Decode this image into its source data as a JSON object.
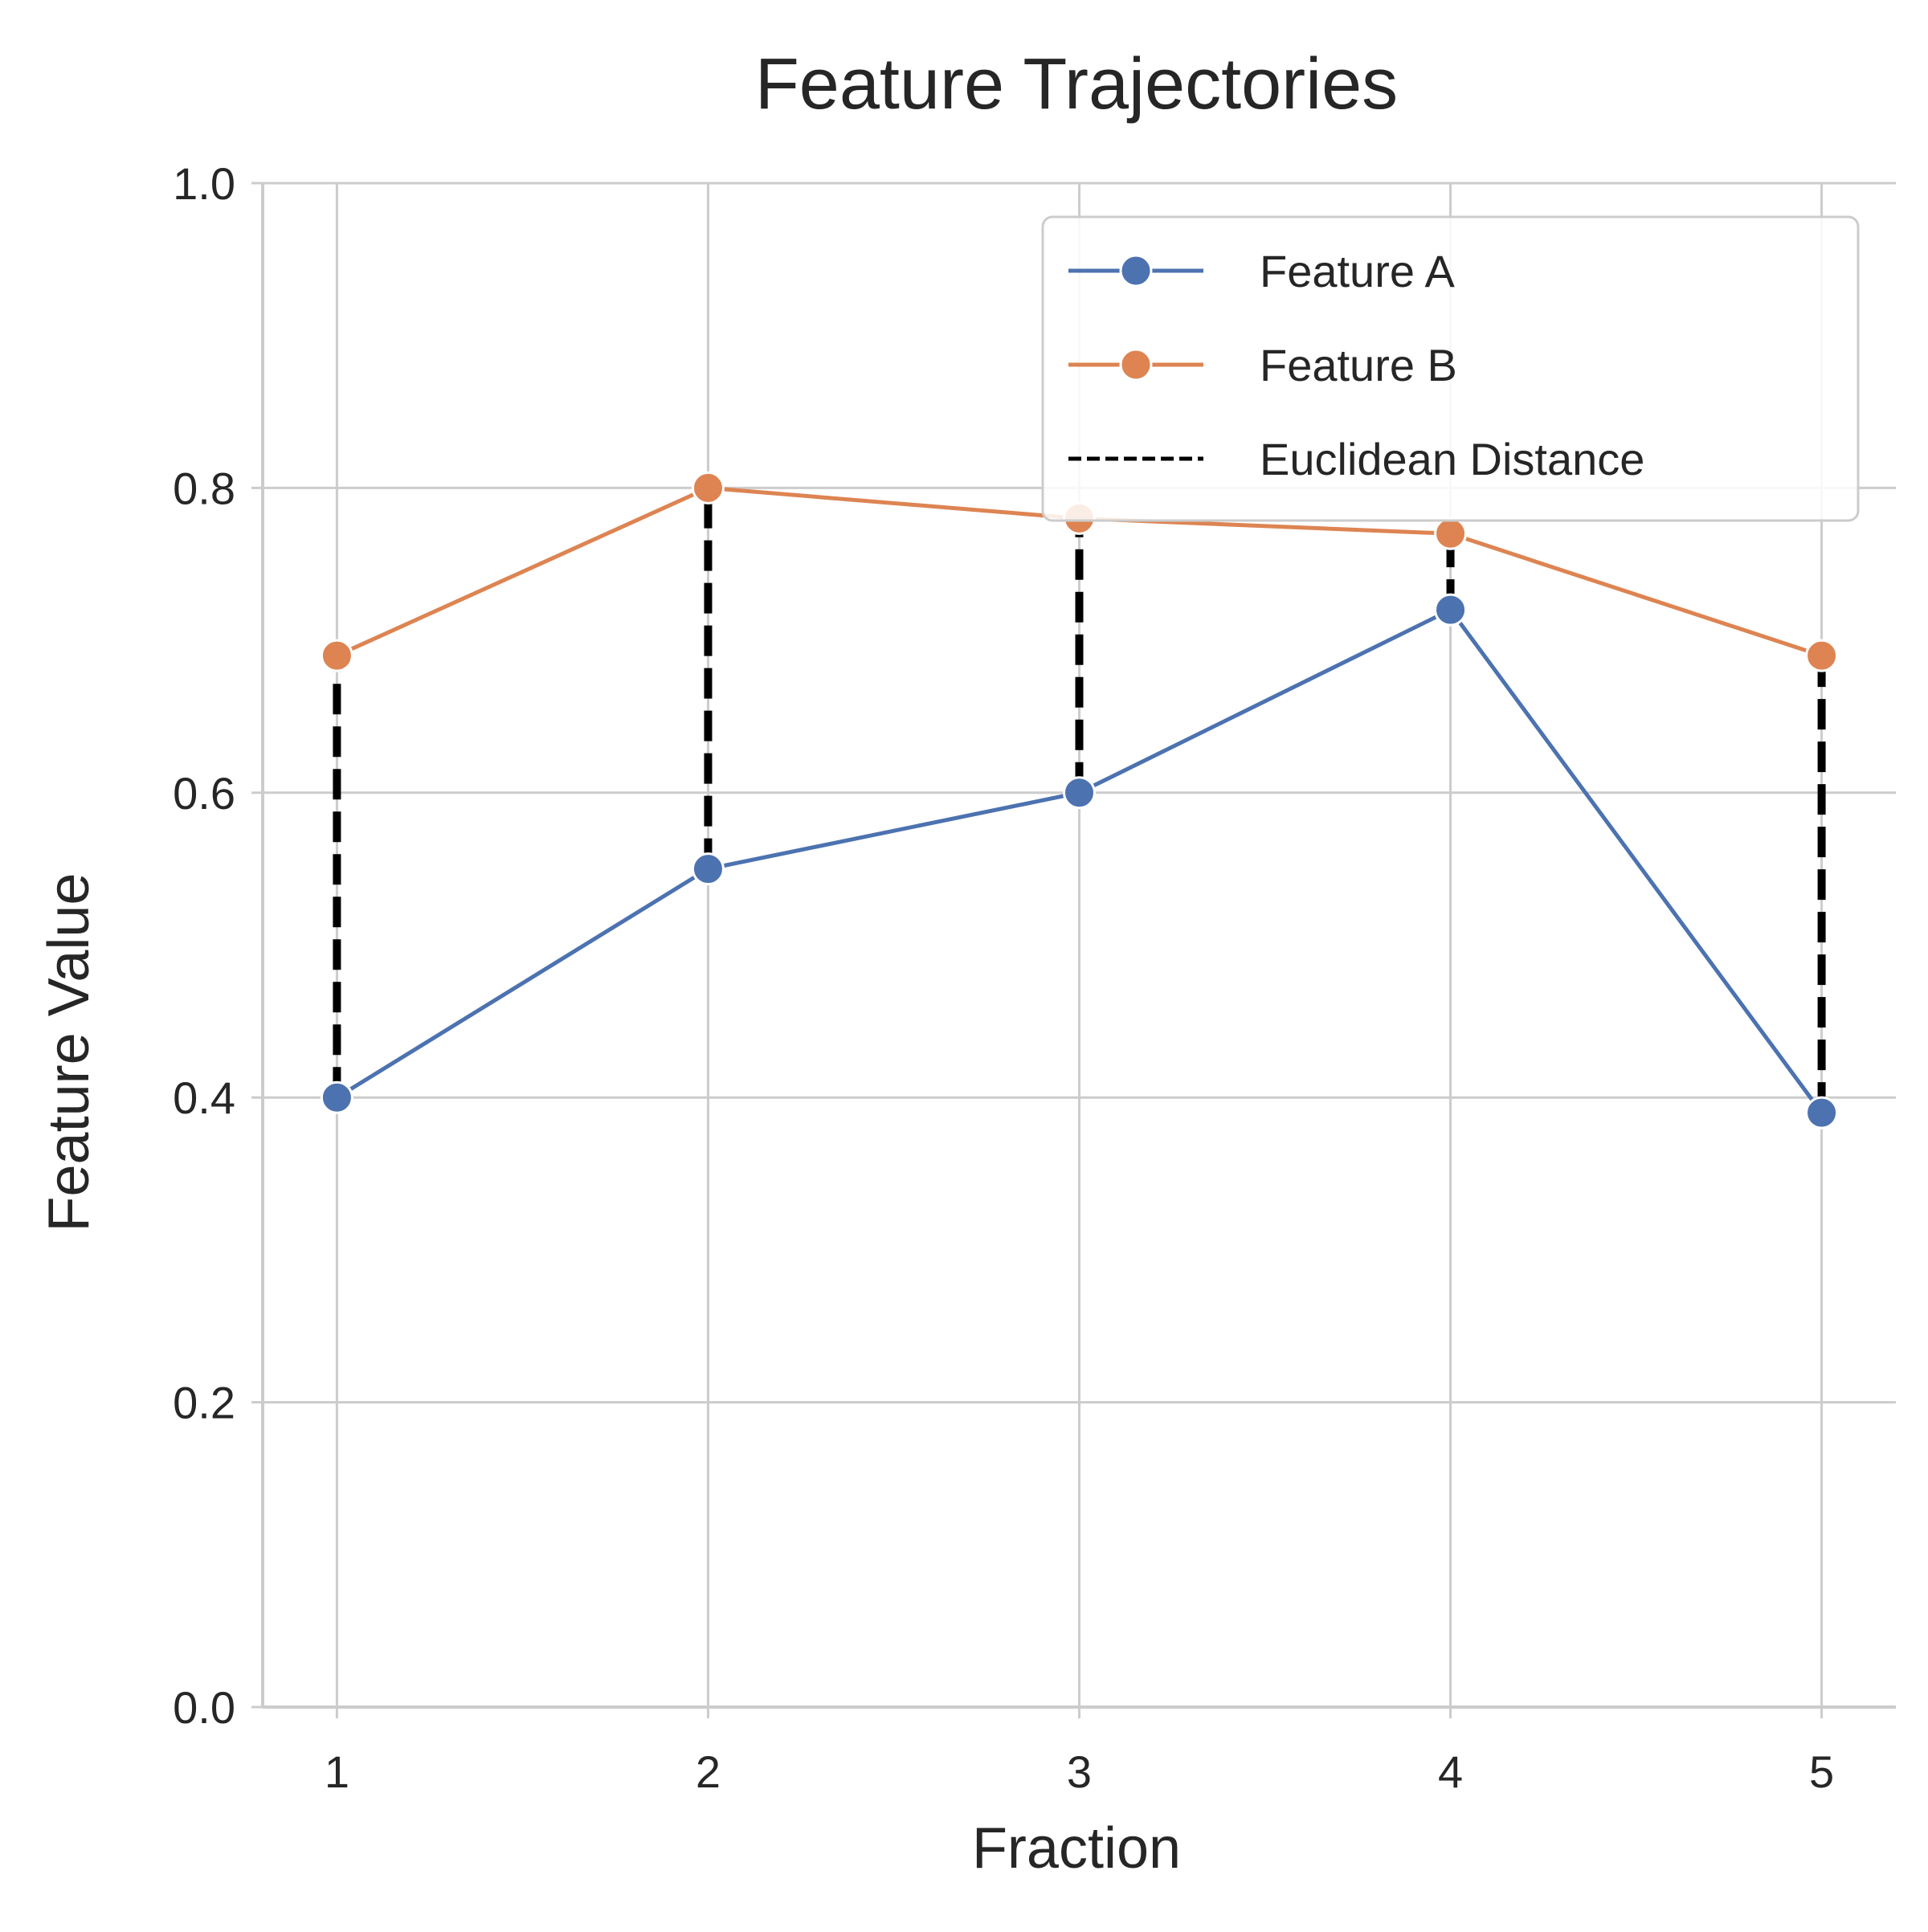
{
  "chart_data": {
    "type": "line",
    "title": "Feature Trajectories",
    "xlabel": "Fraction",
    "ylabel": "Feature Value",
    "x": [
      1,
      2,
      3,
      4,
      5
    ],
    "xlim": [
      0.8,
      5.2
    ],
    "ylim": [
      0.0,
      1.0
    ],
    "x_ticks": [
      "1",
      "2",
      "3",
      "4",
      "5"
    ],
    "y_ticks": [
      "0.0",
      "0.2",
      "0.4",
      "0.6",
      "0.8",
      "1.0"
    ],
    "grid": true,
    "legend_position": "top-right",
    "series": [
      {
        "name": "Feature A",
        "color": "#4c72b0",
        "values": [
          0.4,
          0.55,
          0.6,
          0.72,
          0.39
        ]
      },
      {
        "name": "Feature B",
        "color": "#dd8452",
        "values": [
          0.69,
          0.8,
          0.78,
          0.77,
          0.69
        ]
      }
    ],
    "distance_line": {
      "name": "Euclidean Distance",
      "color": "#000000",
      "style": "dashed"
    }
  }
}
